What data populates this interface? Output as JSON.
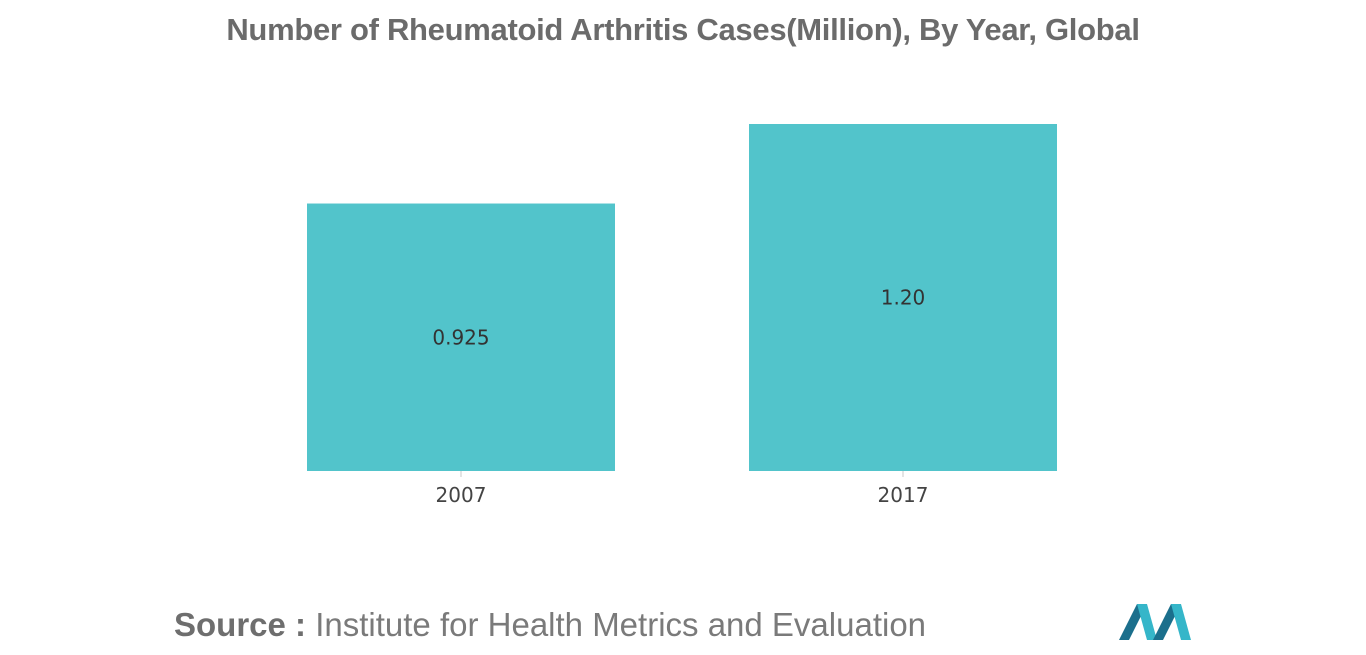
{
  "title": "Number of Rheumatoid Arthritis Cases(Million), By Year, Global",
  "source": {
    "prefix": "Source :",
    "text": "Institute for Health Metrics and Evaluation"
  },
  "colors": {
    "bar": "#52c4cb",
    "axis": "#c8c8c8",
    "logo_dark": "#1b6f8c",
    "logo_light": "#35b6c9"
  },
  "logo": {
    "icon": "mordor-intelligence-logo-icon"
  },
  "chart_data": {
    "type": "bar",
    "title": "Number of Rheumatoid Arthritis Cases(Million), By Year, Global",
    "xlabel": "",
    "ylabel": "",
    "categories": [
      "2007",
      "2017"
    ],
    "values": [
      0.925,
      1.2
    ],
    "value_labels": [
      "0.925",
      "1.20"
    ],
    "ylim": [
      0,
      1.2
    ],
    "grid": false,
    "legend": "none"
  }
}
